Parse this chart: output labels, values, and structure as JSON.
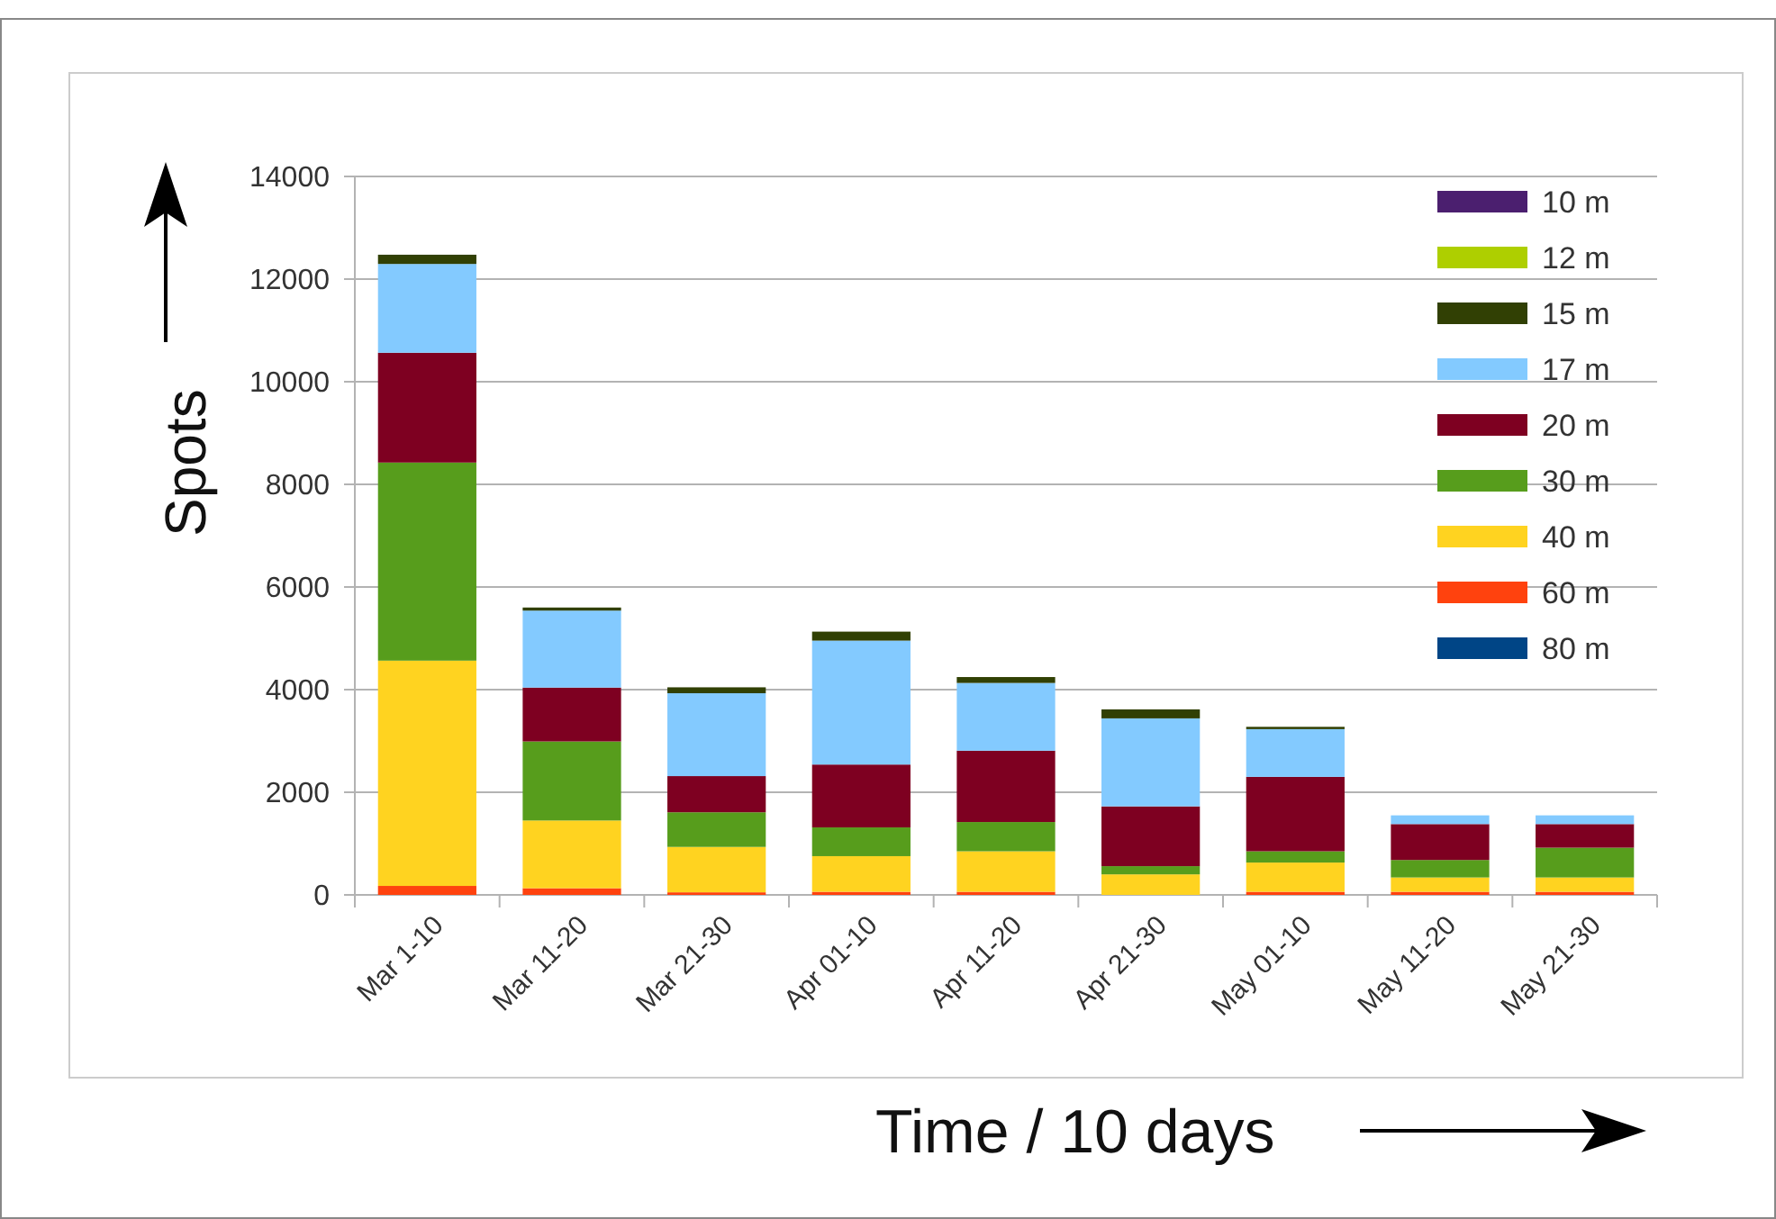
{
  "chart_data": {
    "type": "bar",
    "stacked": true,
    "xlabel": "Time / 10 days",
    "ylabel": "Spots",
    "categories": [
      "Mar 1-10",
      "Mar 11-20",
      "Mar 21-30",
      "Apr 01-10",
      "Apr 11-20",
      "Apr 21-30",
      "May 01-10",
      "May 11-20",
      "May 21-30"
    ],
    "series": [
      {
        "name": "80 m",
        "color": "#004586",
        "values": [
          0,
          0,
          0,
          0,
          0,
          0,
          0,
          0,
          0
        ]
      },
      {
        "name": "60 m",
        "color": "#ff420e",
        "values": [
          175,
          130,
          50,
          60,
          60,
          0,
          60,
          60,
          60
        ]
      },
      {
        "name": "40 m",
        "color": "#ffd320",
        "values": [
          4390,
          1320,
          885,
          695,
          790,
          400,
          570,
          280,
          280
        ]
      },
      {
        "name": "30 m",
        "color": "#579d1c",
        "values": [
          3860,
          1540,
          675,
          560,
          570,
          160,
          220,
          340,
          580
        ]
      },
      {
        "name": "20 m",
        "color": "#7e0021",
        "values": [
          2140,
          1050,
          705,
          1225,
          1390,
          1165,
          1450,
          700,
          460
        ]
      },
      {
        "name": "17 m",
        "color": "#83caff",
        "values": [
          1730,
          1500,
          1615,
          2415,
          1320,
          1715,
          930,
          170,
          170
        ]
      },
      {
        "name": "15 m",
        "color": "#314004",
        "values": [
          180,
          60,
          115,
          175,
          115,
          175,
          45,
          0,
          0
        ]
      },
      {
        "name": "12 m",
        "color": "#aecf00",
        "values": [
          0,
          0,
          0,
          0,
          0,
          0,
          0,
          0,
          0
        ]
      },
      {
        "name": "10 m",
        "color": "#4b1f6f",
        "values": [
          0,
          0,
          0,
          0,
          0,
          0,
          0,
          0,
          0
        ]
      }
    ],
    "ylim": [
      0,
      14000
    ],
    "yticks": [
      0,
      2000,
      4000,
      6000,
      8000,
      10000,
      12000,
      14000
    ],
    "grid": "y",
    "legend": "top right"
  }
}
